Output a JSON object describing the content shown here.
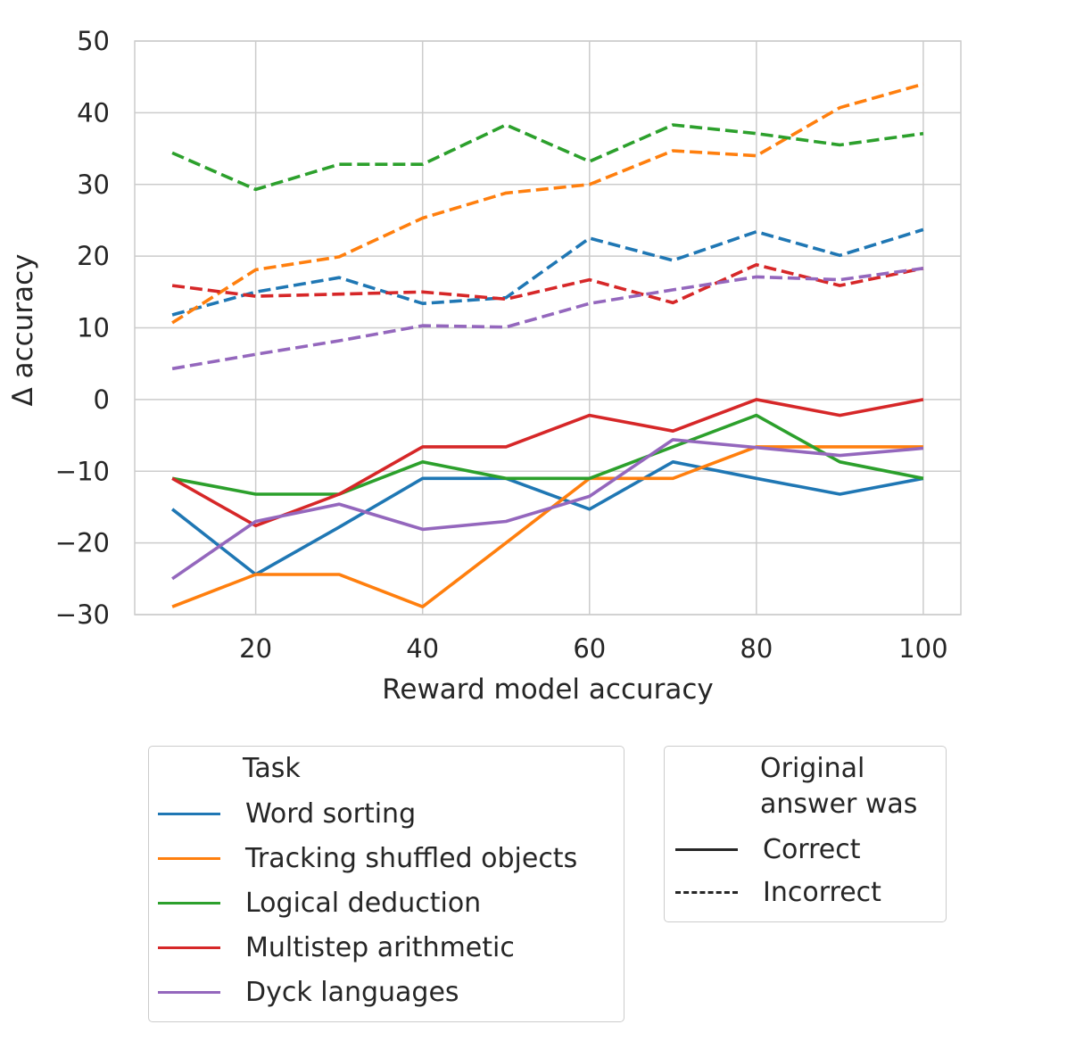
{
  "chart_data": {
    "type": "line",
    "xlabel": "Reward model accuracy",
    "ylabel": "Δ accuracy",
    "xlim": [
      5.5,
      104.5
    ],
    "ylim": [
      -30,
      50
    ],
    "x_ticks": [
      20,
      40,
      60,
      80,
      100
    ],
    "x_tick_labels": [
      "20",
      "40",
      "60",
      "80",
      "100"
    ],
    "y_ticks": [
      -30,
      -20,
      -10,
      0,
      10,
      20,
      30,
      40,
      50
    ],
    "y_tick_labels": [
      "−30",
      "−20",
      "−10",
      "0",
      "10",
      "20",
      "30",
      "40",
      "50"
    ],
    "grid": true,
    "x": [
      10,
      20,
      30,
      40,
      50,
      60,
      70,
      80,
      90,
      100
    ],
    "series": [
      {
        "task": "Word sorting",
        "original": "Correct",
        "color": "#1f77b4",
        "style": "solid",
        "values": [
          -15.3,
          -24.4,
          -17.8,
          -11,
          -11,
          -15.3,
          -8.7,
          -11,
          -13.2,
          -11
        ]
      },
      {
        "task": "Tracking shuffled objects",
        "original": "Correct",
        "color": "#ff7f0e",
        "style": "solid",
        "values": [
          -28.9,
          -24.4,
          -24.4,
          -28.9,
          -20,
          -11,
          -11,
          -6.6,
          -6.6,
          -6.6
        ]
      },
      {
        "task": "Logical deduction",
        "original": "Correct",
        "color": "#2ca02c",
        "style": "solid",
        "values": [
          -11,
          -13.2,
          -13.2,
          -8.7,
          -11,
          -11,
          -6.6,
          -2.2,
          -8.7,
          -11
        ]
      },
      {
        "task": "Multistep arithmetic",
        "original": "Correct",
        "color": "#d62728",
        "style": "solid",
        "values": [
          -11,
          -17.6,
          -13.2,
          -6.6,
          -6.6,
          -2.2,
          -4.4,
          0,
          -2.2,
          0
        ]
      },
      {
        "task": "Dyck languages",
        "original": "Correct",
        "color": "#9467bd",
        "style": "solid",
        "values": [
          -25,
          -17,
          -14.6,
          -18.1,
          -17,
          -13.5,
          -5.6,
          -6.7,
          -7.8,
          -6.8
        ]
      },
      {
        "task": "Word sorting",
        "original": "Incorrect",
        "color": "#1f77b4",
        "style": "dashed",
        "values": [
          11.8,
          15,
          17,
          13.4,
          14.2,
          22.5,
          19.4,
          23.4,
          20.1,
          23.7
        ]
      },
      {
        "task": "Tracking shuffled objects",
        "original": "Incorrect",
        "color": "#ff7f0e",
        "style": "dashed",
        "values": [
          10.7,
          18.1,
          19.9,
          25.3,
          28.8,
          30,
          34.7,
          34,
          40.7,
          44
        ]
      },
      {
        "task": "Logical deduction",
        "original": "Incorrect",
        "color": "#2ca02c",
        "style": "dashed",
        "values": [
          34.4,
          29.3,
          32.8,
          32.8,
          38.3,
          33.2,
          38.3,
          37.1,
          35.5,
          37.1
        ]
      },
      {
        "task": "Multistep arithmetic",
        "original": "Incorrect",
        "color": "#d62728",
        "style": "dashed",
        "values": [
          15.9,
          14.4,
          14.7,
          15,
          14,
          16.7,
          13.5,
          18.8,
          15.9,
          18.3
        ]
      },
      {
        "task": "Dyck languages",
        "original": "Incorrect",
        "color": "#9467bd",
        "style": "dashed",
        "values": [
          4.3,
          6.3,
          8.2,
          10.3,
          10.1,
          13.4,
          15.3,
          17.1,
          16.7,
          18.3
        ]
      }
    ]
  },
  "legend_task": {
    "title": "Task",
    "items": [
      {
        "label": "Word sorting",
        "color": "#1f77b4"
      },
      {
        "label": "Tracking shuffled objects",
        "color": "#ff7f0e"
      },
      {
        "label": "Logical deduction",
        "color": "#2ca02c"
      },
      {
        "label": "Multistep arithmetic",
        "color": "#d62728"
      },
      {
        "label": "Dyck languages",
        "color": "#9467bd"
      }
    ]
  },
  "legend_style": {
    "title_line1": "Original",
    "title_line2": "answer was",
    "items": [
      {
        "label": "Correct",
        "style": "solid"
      },
      {
        "label": "Incorrect",
        "style": "dashed"
      }
    ]
  }
}
